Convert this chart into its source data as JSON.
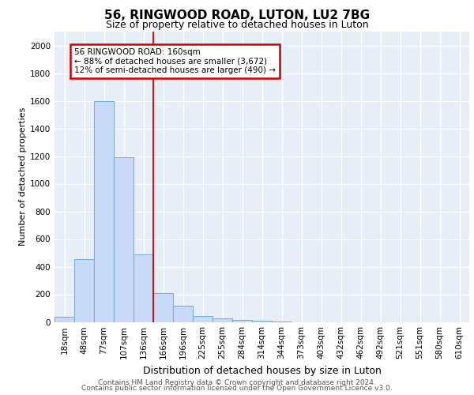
{
  "title1": "56, RINGWOOD ROAD, LUTON, LU2 7BG",
  "title2": "Size of property relative to detached houses in Luton",
  "xlabel": "Distribution of detached houses by size in Luton",
  "ylabel": "Number of detached properties",
  "categories": [
    "18sqm",
    "48sqm",
    "77sqm",
    "107sqm",
    "136sqm",
    "166sqm",
    "196sqm",
    "225sqm",
    "255sqm",
    "284sqm",
    "314sqm",
    "344sqm",
    "373sqm",
    "403sqm",
    "432sqm",
    "462sqm",
    "492sqm",
    "521sqm",
    "551sqm",
    "580sqm",
    "610sqm"
  ],
  "values": [
    35,
    455,
    1600,
    1190,
    490,
    210,
    120,
    45,
    25,
    15,
    10,
    5,
    0,
    0,
    0,
    0,
    0,
    0,
    0,
    0,
    0
  ],
  "bar_color": "#c9daf8",
  "bar_edgecolor": "#7ab0d4",
  "redline_index": 5,
  "annotation_text1": "56 RINGWOOD ROAD: 160sqm",
  "annotation_text2": "← 88% of detached houses are smaller (3,672)",
  "annotation_text3": "12% of semi-detached houses are larger (490) →",
  "annotation_boxcolor": "white",
  "annotation_edgecolor": "#cc0000",
  "redline_color": "#cc0000",
  "ylim": [
    0,
    2100
  ],
  "yticks": [
    0,
    200,
    400,
    600,
    800,
    1000,
    1200,
    1400,
    1600,
    1800,
    2000
  ],
  "footer1": "Contains HM Land Registry data © Crown copyright and database right 2024.",
  "footer2": "Contains public sector information licensed under the Open Government Licence v3.0.",
  "bg_color": "#ffffff",
  "plot_bg_color": "#e8eef7",
  "grid_color": "#ffffff",
  "title1_fontsize": 11,
  "title2_fontsize": 9,
  "ylabel_fontsize": 8,
  "xlabel_fontsize": 9,
  "tick_fontsize": 7.5,
  "footer_fontsize": 6.5
}
